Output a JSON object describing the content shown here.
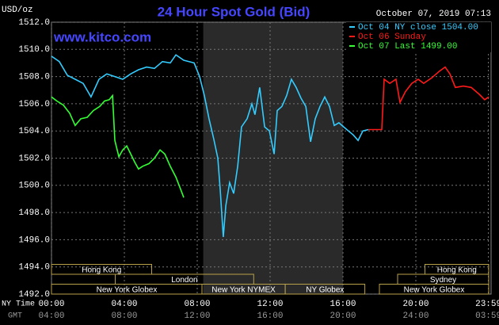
{
  "chart_data": {
    "type": "line",
    "title": "24 Hour Spot Gold (Bid)",
    "y_label": "USD/oz",
    "timestamp": "October 07, 2019 07:13",
    "watermark": "www.kitco.com",
    "x_row_label": "NY Time",
    "x2_row_label": "GMT",
    "xlim": [
      0,
      24
    ],
    "xticks": [
      {
        "value": 0,
        "label": "00:00"
      },
      {
        "value": 4,
        "label": "04:00"
      },
      {
        "value": 8,
        "label": "08:00"
      },
      {
        "value": 12,
        "label": "12:00"
      },
      {
        "value": 16,
        "label": "16:00"
      },
      {
        "value": 20,
        "label": "20:00"
      },
      {
        "value": 23.983,
        "label": "23:59"
      }
    ],
    "x2_tick_labels": [
      "04:00",
      "08:00",
      "12:00",
      "16:00",
      "20:00",
      "24:00",
      "03:59"
    ],
    "ylim": [
      1492,
      1512
    ],
    "yticks": [
      {
        "value": 1492,
        "label": "1492.0"
      },
      {
        "value": 1494,
        "label": "1494.0"
      },
      {
        "value": 1496,
        "label": "1496.0"
      },
      {
        "value": 1498,
        "label": "1498.0"
      },
      {
        "value": 1500,
        "label": "1500.0"
      },
      {
        "value": 1502,
        "label": "1502.0"
      },
      {
        "value": 1504,
        "label": "1504.0"
      },
      {
        "value": 1506,
        "label": "1506.0"
      },
      {
        "value": 1508,
        "label": "1508.0"
      },
      {
        "value": 1510,
        "label": "1510.0"
      },
      {
        "value": 1512,
        "label": "1512.0"
      }
    ],
    "grid": true,
    "shaded_range": [
      8.33,
      16.0
    ],
    "sessions": [
      {
        "label": "Hong Kong",
        "start": 0,
        "end": 5.5,
        "row": 0
      },
      {
        "label": "London",
        "start": 3.5,
        "end": 11.1,
        "row": 1
      },
      {
        "label": "New York Globex",
        "start": 0,
        "end": 8.26,
        "row": 2
      },
      {
        "label": "New York NYMEX",
        "start": 8.26,
        "end": 12.83,
        "row": 2
      },
      {
        "label": "NY Globex",
        "start": 12.83,
        "end": 17.2,
        "row": 2
      },
      {
        "label": "Hong Kong",
        "start": 20.5,
        "end": 24,
        "row": 0
      },
      {
        "label": "Sydney",
        "start": 19.0,
        "end": 24,
        "row": 1
      },
      {
        "label": "New York Globex",
        "start": 18.0,
        "end": 24,
        "row": 2
      }
    ],
    "series": [
      {
        "name": "Oct 04 NY close 1504.00",
        "color": "#33ccff",
        "x": [
          0,
          0.43,
          0.87,
          1.3,
          1.74,
          2.17,
          2.61,
          3.04,
          3.48,
          3.91,
          4.35,
          4.78,
          5.22,
          5.65,
          6.09,
          6.52,
          6.83,
          7.26,
          7.83,
          8.13,
          8.39,
          8.65,
          8.91,
          9.13,
          9.26,
          9.43,
          9.57,
          9.78,
          10.0,
          10.22,
          10.43,
          10.74,
          11.0,
          11.17,
          11.43,
          11.7,
          11.96,
          12.22,
          12.39,
          12.65,
          12.91,
          13.17,
          13.43,
          13.7,
          13.96,
          14.22,
          14.48,
          14.74,
          15.0,
          15.26,
          15.52,
          15.78,
          16.04,
          16.3,
          16.57,
          16.83,
          17.09,
          17.39
        ],
        "values": [
          1509.5,
          1509.1,
          1508.1,
          1507.8,
          1507.5,
          1506.5,
          1507.8,
          1508.2,
          1508.0,
          1507.8,
          1508.2,
          1508.5,
          1508.7,
          1508.6,
          1509.1,
          1509.0,
          1509.6,
          1509.2,
          1509.0,
          1508.0,
          1506.6,
          1504.9,
          1503.4,
          1502.0,
          1499.7,
          1496.2,
          1498.5,
          1500.2,
          1499.4,
          1501.4,
          1504.3,
          1504.9,
          1506.0,
          1505.2,
          1507.2,
          1504.3,
          1504.0,
          1502.3,
          1505.5,
          1505.8,
          1506.6,
          1507.8,
          1507.2,
          1506.4,
          1505.8,
          1503.2,
          1504.9,
          1505.8,
          1506.5,
          1505.8,
          1504.4,
          1504.6,
          1504.3,
          1504.0,
          1503.7,
          1503.3,
          1504.0,
          1504.1
        ]
      },
      {
        "name": "Oct 06 Sunday",
        "color": "#ff1a1a",
        "x": [
          17.39,
          18.13,
          18.26,
          18.57,
          18.91,
          19.13,
          19.43,
          19.78,
          20.13,
          20.43,
          20.87,
          21.3,
          21.61,
          21.87,
          22.17,
          22.61,
          23.04,
          23.48,
          23.78,
          24.0
        ],
        "values": [
          1504.1,
          1504.1,
          1507.8,
          1507.5,
          1507.8,
          1506.1,
          1506.9,
          1507.5,
          1507.8,
          1507.5,
          1507.9,
          1508.4,
          1508.7,
          1508.2,
          1507.2,
          1507.3,
          1507.2,
          1506.7,
          1506.3,
          1506.5
        ]
      },
      {
        "name": "Oct 07 Last 1499.00",
        "color": "#33ff33",
        "x": [
          0,
          0.3,
          0.65,
          1.0,
          1.3,
          1.61,
          1.96,
          2.3,
          2.65,
          2.91,
          3.17,
          3.35,
          3.48,
          3.7,
          3.91,
          4.13,
          4.35,
          4.57,
          4.78,
          5.0,
          5.35,
          5.65,
          5.96,
          6.22,
          6.52,
          6.83,
          7.09,
          7.26
        ],
        "values": [
          1506.5,
          1506.2,
          1505.9,
          1505.3,
          1504.4,
          1504.9,
          1505.0,
          1505.5,
          1505.8,
          1506.2,
          1506.3,
          1506.6,
          1503.3,
          1502.1,
          1502.6,
          1502.9,
          1502.3,
          1501.7,
          1501.2,
          1501.4,
          1501.6,
          1502.0,
          1502.6,
          1502.3,
          1501.4,
          1500.6,
          1499.7,
          1499.1
        ]
      }
    ]
  }
}
